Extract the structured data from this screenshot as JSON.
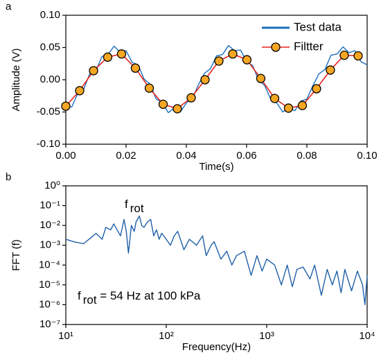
{
  "chart_data": [
    {
      "type": "line",
      "panel_label": "a",
      "xlabel": "Time(s)",
      "ylabel": "Amplitude (V)",
      "xlim": [
        0,
        0.1
      ],
      "ylim": [
        -0.1,
        0.1
      ],
      "xticks": [
        {
          "value": 0,
          "label": "0.00"
        },
        {
          "value": 0.02,
          "label": "0.02"
        },
        {
          "value": 0.04,
          "label": "0.04"
        },
        {
          "value": 0.06,
          "label": "0.06"
        },
        {
          "value": 0.08,
          "label": "0.08"
        },
        {
          "value": 0.1,
          "label": "0.10"
        }
      ],
      "yticks": [
        {
          "value": -0.1,
          "label": "-0.10"
        },
        {
          "value": -0.05,
          "label": "-0.05"
        },
        {
          "value": 0,
          "label": "0.00"
        },
        {
          "value": 0.05,
          "label": "0.05"
        },
        {
          "value": 0.1,
          "label": "0.10"
        }
      ],
      "legend": "upper right",
      "series": [
        {
          "name": "Test data",
          "color": "#1b6fbd",
          "marker": false,
          "x": [
            0,
            0.002,
            0.004,
            0.006,
            0.008,
            0.01,
            0.012,
            0.014,
            0.016,
            0.018,
            0.02,
            0.022,
            0.024,
            0.026,
            0.028,
            0.03,
            0.032,
            0.034,
            0.036,
            0.038,
            0.04,
            0.042,
            0.044,
            0.046,
            0.048,
            0.05,
            0.052,
            0.054,
            0.056,
            0.058,
            0.06,
            0.062,
            0.064,
            0.066,
            0.068,
            0.07,
            0.072,
            0.074,
            0.076,
            0.078,
            0.08,
            0.082,
            0.084,
            0.086,
            0.088,
            0.09,
            0.092,
            0.094,
            0.096,
            0.098,
            0.1
          ],
          "values": [
            -0.042,
            -0.042,
            -0.021,
            -0.014,
            0.01,
            0.014,
            0.036,
            0.039,
            0.052,
            0.043,
            0.045,
            0.027,
            0.023,
            0.001,
            -0.007,
            -0.03,
            -0.035,
            -0.051,
            -0.044,
            -0.05,
            -0.036,
            -0.029,
            -0.008,
            0.01,
            0.017,
            0.037,
            0.039,
            0.053,
            0.045,
            0.046,
            0.028,
            0.022,
            -0.001,
            -0.009,
            -0.03,
            -0.036,
            -0.05,
            -0.044,
            -0.048,
            -0.033,
            -0.03,
            -0.009,
            0.009,
            0.016,
            0.038,
            0.04,
            0.051,
            0.042,
            0.045,
            0.028,
            0.023
          ]
        },
        {
          "name": "Filtter",
          "color": "#e8221b",
          "marker": true,
          "marker_color": "#f5a623",
          "x": [
            0,
            0.0046,
            0.0092,
            0.0139,
            0.0185,
            0.0231,
            0.0277,
            0.0323,
            0.037,
            0.0416,
            0.0462,
            0.0508,
            0.0554,
            0.0601,
            0.0647,
            0.0693,
            0.0739,
            0.0785,
            0.0832,
            0.0878,
            0.0924,
            0.097
          ],
          "values": [
            -0.041,
            -0.017,
            0.014,
            0.035,
            0.04,
            0.018,
            -0.013,
            -0.038,
            -0.045,
            -0.028,
            0,
            0.029,
            0.04,
            0.031,
            0.002,
            -0.029,
            -0.044,
            -0.04,
            -0.014,
            0.015,
            0.038,
            0.037
          ]
        }
      ]
    },
    {
      "type": "line",
      "panel_label": "b",
      "xlabel": "Frequency(Hz)",
      "ylabel": "FFT (f)",
      "xscale": "log",
      "yscale": "log",
      "xlim": [
        10,
        10000
      ],
      "ylim": [
        1e-07,
        1
      ],
      "xticks": [
        {
          "value": 10,
          "label": "10¹"
        },
        {
          "value": 100,
          "label": "10²"
        },
        {
          "value": 1000,
          "label": "10³"
        },
        {
          "value": 10000,
          "label": "10⁴"
        }
      ],
      "yticks": [
        {
          "value": 1e-07,
          "label": "10⁻⁷"
        },
        {
          "value": 1e-06,
          "label": "10⁻⁶"
        },
        {
          "value": 1e-05,
          "label": "10⁻⁵"
        },
        {
          "value": 0.0001,
          "label": "10⁻⁴"
        },
        {
          "value": 0.001,
          "label": "10⁻³"
        },
        {
          "value": 0.01,
          "label": "10⁻²"
        },
        {
          "value": 0.1,
          "label": "10⁻¹"
        },
        {
          "value": 1,
          "label": "10⁰"
        }
      ],
      "annotations": [
        {
          "text": "f",
          "sub": "rot"
        },
        {
          "text": "f",
          "sub": "rot",
          "rest": " = 54 Hz at 100 kPa"
        }
      ],
      "series": [
        {
          "color": "#1f5fa8",
          "marker": false,
          "x": [
            10,
            12,
            15,
            18,
            20,
            23,
            25,
            28,
            30,
            33,
            35,
            38,
            40,
            42,
            45,
            48,
            50,
            54,
            57,
            60,
            65,
            70,
            75,
            80,
            85,
            90,
            100,
            110,
            120,
            130,
            150,
            170,
            200,
            230,
            250,
            280,
            300,
            350,
            400,
            450,
            500,
            600,
            700,
            800,
            900,
            1000,
            1200,
            1400,
            1600,
            1800,
            2000,
            2300,
            2700,
            3000,
            3500,
            4000,
            4500,
            5000,
            5500,
            6000,
            7000,
            8000,
            9000,
            9500,
            10000
          ],
          "values": [
            0.002,
            0.0015,
            0.0012,
            0.0025,
            0.004,
            0.002,
            0.008,
            0.006,
            0.012,
            0.005,
            0.003,
            0.02,
            0.005,
            0.0004,
            0.01,
            0.005,
            0.015,
            0.03,
            0.01,
            0.008,
            0.015,
            0.02,
            0.003,
            0.006,
            0.002,
            0.004,
            0.002,
            0.001,
            0.003,
            0.005,
            0.0006,
            0.002,
            0.001,
            0.003,
            0.0003,
            0.001,
            0.0015,
            0.0002,
            0.0005,
            0.0001,
            0.0003,
            0.0005,
            3e-05,
            0.0003,
            5e-05,
            0.0002,
            0.0001,
            1e-05,
            0.0001,
            8e-06,
            6e-05,
            8e-05,
            2e-05,
            0.0001,
            3e-06,
            6e-05,
            1e-05,
            5e-05,
            4e-06,
            6e-05,
            5e-06,
            5e-05,
            1e-05,
            1e-06,
            3e-05
          ]
        }
      ]
    }
  ]
}
